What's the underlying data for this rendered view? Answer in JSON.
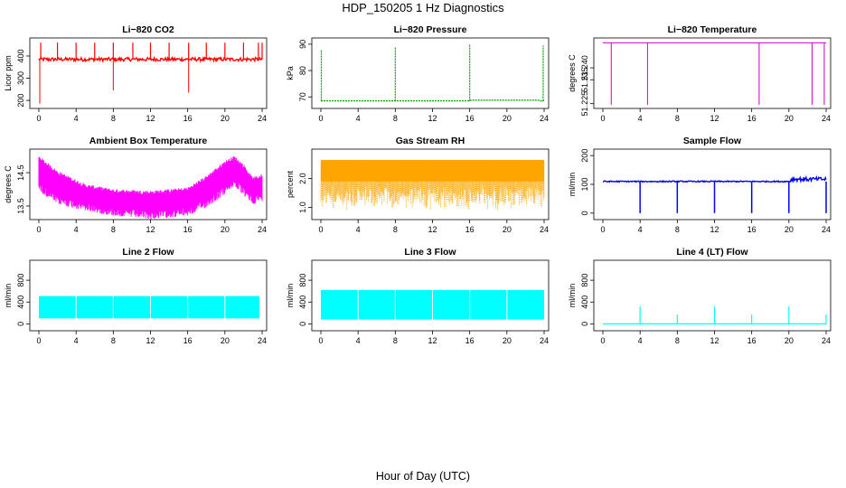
{
  "figure": {
    "title": "HDP_150205  1 Hz Diagnostics",
    "xlabel": "Hour of Day (UTC)"
  },
  "chart_data": [
    {
      "type": "line",
      "title": "Li−820 CO2",
      "ylabel": "Licor ppm",
      "color": "#ff0000",
      "xlim": [
        0,
        24
      ],
      "ylim": [
        180,
        465
      ],
      "xticks": [
        "0",
        "4",
        "8",
        "12",
        "16",
        "20",
        "24"
      ],
      "yticks": [
        200,
        300,
        400
      ],
      "series": [
        {
          "name": "CO2",
          "baseline": 385,
          "noise": 8,
          "spikes_up": [
            0.2,
            2,
            4,
            6,
            8,
            10.1,
            12,
            14,
            16.1,
            18,
            20,
            22,
            23.6,
            24
          ],
          "spikes_down": [
            [
              0.1,
              185
            ],
            [
              8,
              245
            ],
            [
              16.1,
              235
            ]
          ]
        }
      ]
    },
    {
      "type": "line",
      "title": "Li−820 Pressure",
      "ylabel": "kPa",
      "color": "#00a000",
      "xlim": [
        0,
        24
      ],
      "ylim": [
        67,
        91
      ],
      "xticks": [
        "0",
        "4",
        "8",
        "12",
        "16",
        "20",
        "24"
      ],
      "yticks": [
        70,
        80,
        90
      ],
      "series": [
        {
          "name": "Pressure",
          "baseline": 68.5,
          "spikes_up": [
            [
              0.05,
              88
            ],
            [
              8,
              89
            ],
            [
              16,
              90
            ],
            [
              23.9,
              89.5
            ]
          ]
        }
      ]
    },
    {
      "type": "line",
      "title": "Li−820 Temperature",
      "ylabel": "degrees C",
      "color": "#cc00cc",
      "xlim": [
        0,
        24
      ],
      "ylim": [
        51.2245,
        51.251
      ],
      "xticks": [
        "0",
        "4",
        "8",
        "12",
        "16",
        "20",
        "24"
      ],
      "yticks": [
        "51.225",
        "51.235",
        "51.240"
      ],
      "series": [
        {
          "name": "Temperature",
          "baseline": 51.2505,
          "spikes_down": [
            0.9,
            4.8,
            16.8,
            22.5,
            23.8
          ]
        }
      ]
    },
    {
      "type": "line",
      "title": "Ambient Box Temperature",
      "ylabel": "degrees C",
      "color": "#ff00ff",
      "xlim": [
        0,
        24
      ],
      "ylim": [
        13.2,
        15.1
      ],
      "xticks": [
        "0",
        "4",
        "8",
        "12",
        "16",
        "20",
        "24"
      ],
      "yticks": [
        "13.5",
        "14.5"
      ],
      "series": [
        {
          "name": "Box Temp",
          "upper": [
            [
              0,
              14.95
            ],
            [
              2,
              14.5
            ],
            [
              5,
              14.1
            ],
            [
              8,
              13.95
            ],
            [
              12,
              13.9
            ],
            [
              16,
              14.0
            ],
            [
              18,
              14.35
            ],
            [
              20,
              14.8
            ],
            [
              21,
              14.95
            ],
            [
              22,
              14.7
            ],
            [
              23,
              14.3
            ],
            [
              24,
              14.4
            ]
          ],
          "lower": [
            [
              0,
              14.2
            ],
            [
              2,
              13.8
            ],
            [
              5,
              13.6
            ],
            [
              8,
              13.45
            ],
            [
              12,
              13.35
            ],
            [
              16,
              13.45
            ],
            [
              18,
              13.7
            ],
            [
              20,
              14.1
            ],
            [
              21,
              14.35
            ],
            [
              22,
              14.05
            ],
            [
              23,
              13.8
            ],
            [
              24,
              13.9
            ]
          ]
        }
      ]
    },
    {
      "type": "line",
      "title": "Gas Stream RH",
      "ylabel": "percent",
      "color": "#ffa500",
      "xlim": [
        0,
        24
      ],
      "ylim": [
        0.7,
        2.9
      ],
      "xticks": [
        "0",
        "4",
        "8",
        "12",
        "16",
        "20",
        "24"
      ],
      "yticks": [
        "1.0",
        "2.0"
      ],
      "series": [
        {
          "name": "RH",
          "upper": 2.65,
          "lower_min": 0.9,
          "lower_typ": 1.2
        }
      ]
    },
    {
      "type": "line",
      "title": "Sample Flow",
      "ylabel": "ml/min",
      "color": "#0000ff",
      "xlim": [
        0,
        24
      ],
      "ylim": [
        -10,
        210
      ],
      "xticks": [
        "0",
        "4",
        "8",
        "12",
        "16",
        "20",
        "24"
      ],
      "yticks": [
        0,
        100,
        200
      ],
      "series": [
        {
          "name": "Sample Flow",
          "baseline": 110,
          "end_value": 118,
          "spikes_down": [
            4,
            8,
            12,
            16,
            20,
            24
          ]
        }
      ]
    },
    {
      "type": "line",
      "title": "Line 2 Flow",
      "ylabel": "ml/min",
      "color": "#00ffff",
      "xlim": [
        0,
        24
      ],
      "ylim": [
        -60,
        1100
      ],
      "xticks": [
        "0",
        "4",
        "8",
        "12",
        "16",
        "20",
        "24"
      ],
      "yticks": [
        0,
        400,
        800
      ],
      "series": [
        {
          "name": "Line 2",
          "upper": 510,
          "lower": 100,
          "gaps": [
            4,
            8,
            12,
            16,
            20
          ]
        }
      ]
    },
    {
      "type": "line",
      "title": "Line 3 Flow",
      "ylabel": "ml/min",
      "color": "#00ffff",
      "xlim": [
        0,
        24
      ],
      "ylim": [
        -60,
        1100
      ],
      "xticks": [
        "0",
        "4",
        "8",
        "12",
        "16",
        "20",
        "24"
      ],
      "yticks": [
        0,
        400,
        800
      ],
      "series": [
        {
          "name": "Line 3",
          "upper": 620,
          "lower": 80,
          "gaps": [
            4,
            8,
            12,
            16,
            20
          ]
        }
      ]
    },
    {
      "type": "line",
      "title": "Line 4 (LT) Flow",
      "ylabel": "ml/min",
      "color": "#00ffff",
      "xlim": [
        0,
        24
      ],
      "ylim": [
        -60,
        1100
      ],
      "xticks": [
        "0",
        "4",
        "8",
        "12",
        "16",
        "20",
        "24"
      ],
      "yticks": [
        0,
        400,
        800
      ],
      "series": [
        {
          "name": "Line 4",
          "baseline": 0,
          "spikes_up": [
            [
              4,
              320
            ],
            [
              8,
              170
            ],
            [
              12,
              320
            ],
            [
              16,
              170
            ],
            [
              20,
              320
            ],
            [
              24,
              170
            ]
          ]
        }
      ]
    }
  ]
}
